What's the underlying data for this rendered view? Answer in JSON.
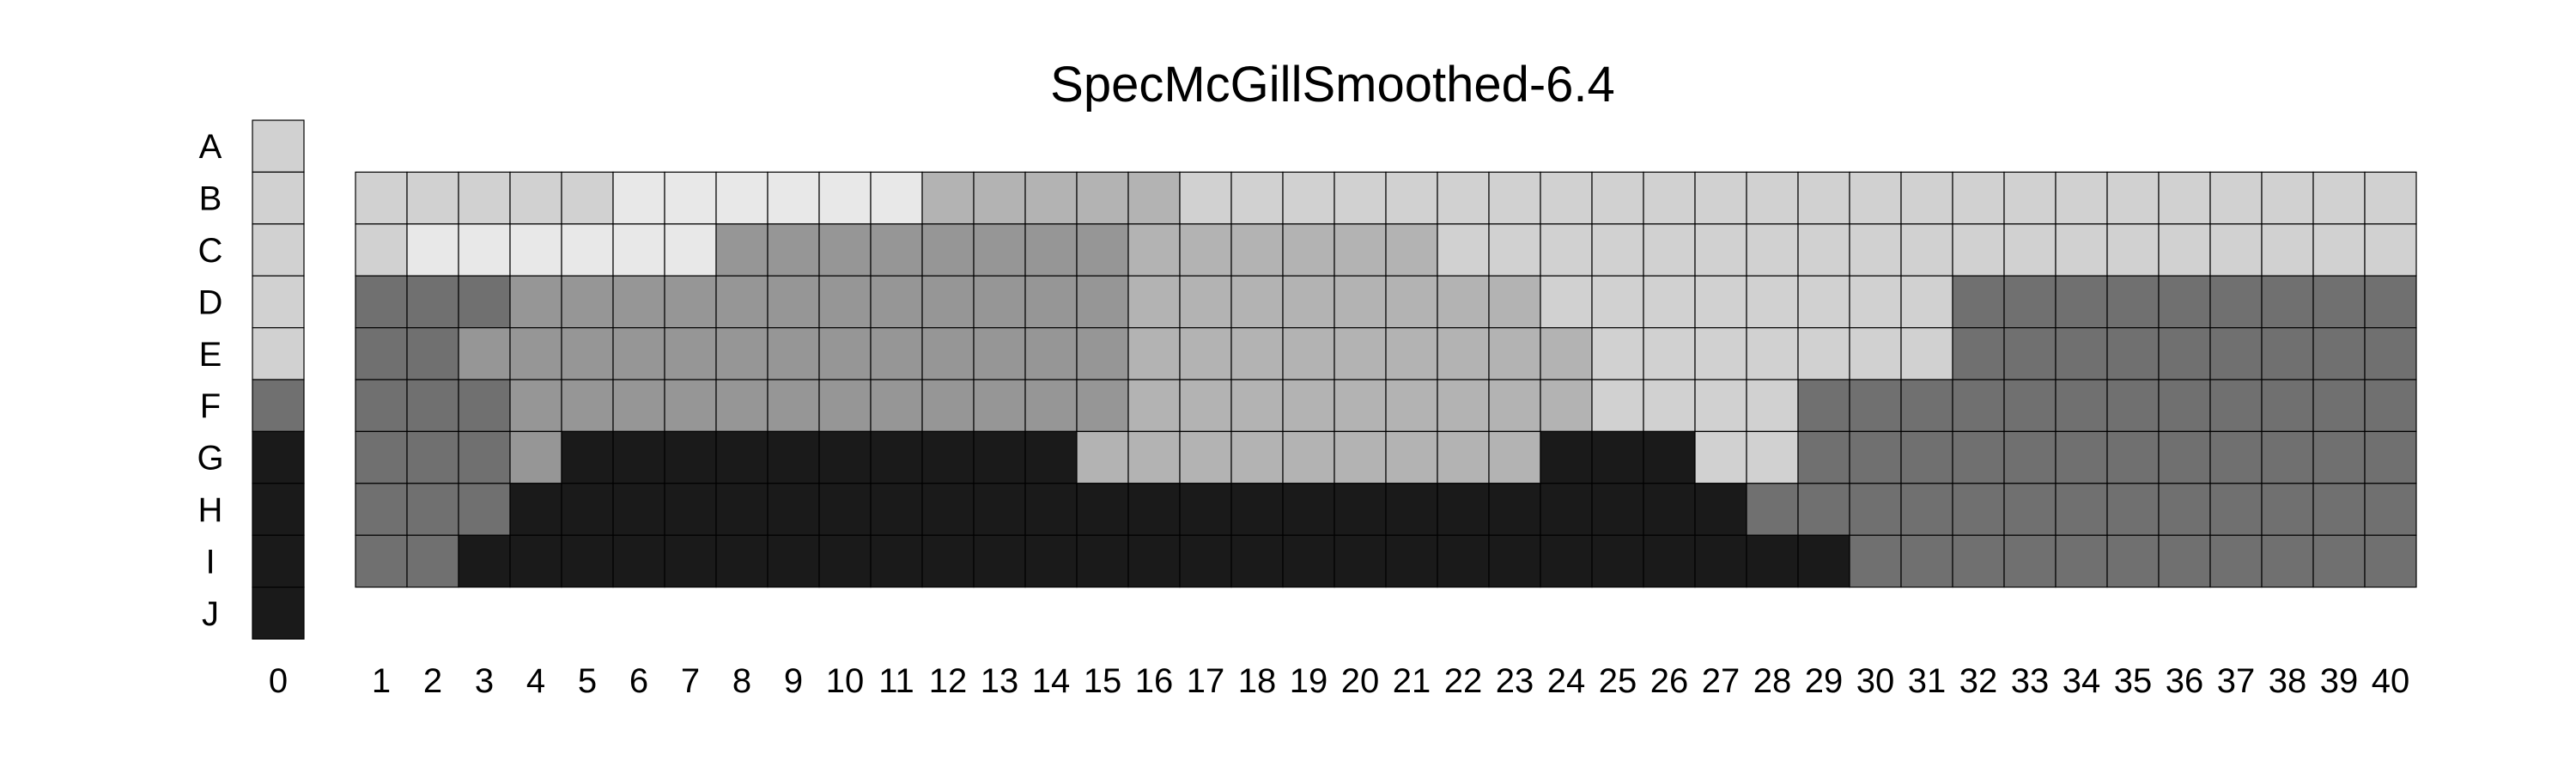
{
  "chart_data": {
    "type": "heatmap",
    "title": "SpecMcGillSmoothed-6.4",
    "row_labels": [
      "A",
      "B",
      "C",
      "D",
      "E",
      "F",
      "G",
      "H",
      "I",
      "J"
    ],
    "column_labels": [
      "0",
      "1",
      "2",
      "3",
      "4",
      "5",
      "6",
      "7",
      "8",
      "9",
      "10",
      "11",
      "12",
      "13",
      "14",
      "15",
      "16",
      "17",
      "18",
      "19",
      "20",
      "21",
      "22",
      "23",
      "24",
      "25",
      "26",
      "27",
      "28",
      "29",
      "30",
      "31",
      "32",
      "33",
      "34",
      "35",
      "36",
      "37",
      "38",
      "39",
      "40"
    ],
    "column0_rows": [
      "A",
      "B",
      "C",
      "D",
      "E",
      "F",
      "G",
      "H",
      "I",
      "J"
    ],
    "columns_1_40_rows": [
      "B",
      "C",
      "D",
      "E",
      "F",
      "G",
      "H",
      "I"
    ],
    "levels": {
      "0": "#1a1a1a",
      "1": "#707070",
      "2": "#969696",
      "3": "#b3b3b3",
      "4": "#d1d1d1",
      "5": "#e8e8e8"
    },
    "column0_values": [
      4,
      4,
      4,
      4,
      4,
      1,
      0,
      0,
      0,
      0
    ],
    "grid_values": [
      [
        4,
        4,
        4,
        4,
        4,
        5,
        5,
        5,
        5,
        5,
        5,
        3,
        3,
        3,
        3,
        3,
        4,
        4,
        4,
        4,
        4,
        4,
        4,
        4,
        4,
        4,
        4,
        4,
        4,
        4,
        4,
        4,
        4,
        4,
        4,
        4,
        4,
        4,
        4,
        4
      ],
      [
        4,
        5,
        5,
        5,
        5,
        5,
        5,
        2,
        2,
        2,
        2,
        2,
        2,
        2,
        2,
        3,
        3,
        3,
        3,
        3,
        3,
        4,
        4,
        4,
        4,
        4,
        4,
        4,
        4,
        4,
        4,
        4,
        4,
        4,
        4,
        4,
        4,
        4,
        4,
        4
      ],
      [
        1,
        1,
        1,
        2,
        2,
        2,
        2,
        2,
        2,
        2,
        2,
        2,
        2,
        2,
        2,
        3,
        3,
        3,
        3,
        3,
        3,
        3,
        3,
        4,
        4,
        4,
        4,
        4,
        4,
        4,
        4,
        1,
        1,
        1,
        1,
        1,
        1,
        1,
        1,
        1
      ],
      [
        1,
        1,
        2,
        2,
        2,
        2,
        2,
        2,
        2,
        2,
        2,
        2,
        2,
        2,
        2,
        3,
        3,
        3,
        3,
        3,
        3,
        3,
        3,
        3,
        4,
        4,
        4,
        4,
        4,
        4,
        4,
        1,
        1,
        1,
        1,
        1,
        1,
        1,
        1,
        1
      ],
      [
        1,
        1,
        1,
        2,
        2,
        2,
        2,
        2,
        2,
        2,
        2,
        2,
        2,
        2,
        2,
        3,
        3,
        3,
        3,
        3,
        3,
        3,
        3,
        3,
        4,
        4,
        4,
        4,
        1,
        1,
        1,
        1,
        1,
        1,
        1,
        1,
        1,
        1,
        1,
        1
      ],
      [
        1,
        1,
        1,
        2,
        0,
        0,
        0,
        0,
        0,
        0,
        0,
        0,
        0,
        0,
        3,
        3,
        3,
        3,
        3,
        3,
        3,
        3,
        3,
        0,
        0,
        0,
        4,
        4,
        1,
        1,
        1,
        1,
        1,
        1,
        1,
        1,
        1,
        1,
        1,
        1
      ],
      [
        1,
        1,
        1,
        0,
        0,
        0,
        0,
        0,
        0,
        0,
        0,
        0,
        0,
        0,
        0,
        0,
        0,
        0,
        0,
        0,
        0,
        0,
        0,
        0,
        0,
        0,
        0,
        1,
        1,
        1,
        1,
        1,
        1,
        1,
        1,
        1,
        1,
        1,
        1,
        1
      ],
      [
        1,
        1,
        0,
        0,
        0,
        0,
        0,
        0,
        0,
        0,
        0,
        0,
        0,
        0,
        0,
        0,
        0,
        0,
        0,
        0,
        0,
        0,
        0,
        0,
        0,
        0,
        0,
        0,
        0,
        1,
        1,
        1,
        1,
        1,
        1,
        1,
        1,
        1,
        1,
        1
      ]
    ]
  }
}
